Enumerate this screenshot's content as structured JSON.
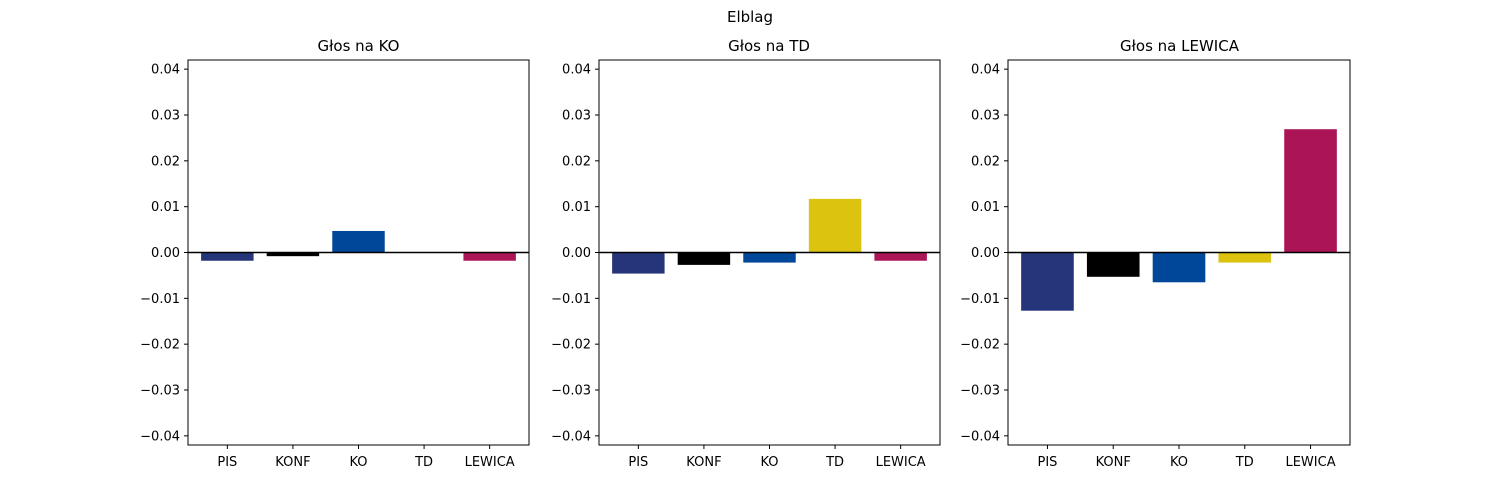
{
  "figure": {
    "suptitle": "Elblag"
  },
  "colors": {
    "PIS": "#263579",
    "KONF": "#000000",
    "KO": "#004699",
    "TD": "#dcc30f",
    "LEWICA": "#ab1558",
    "zero_line": "#000000",
    "axes_frame": "#000000"
  },
  "chart_data": [
    {
      "type": "bar",
      "title": "Głos na KO",
      "categories": [
        "PIS",
        "KONF",
        "KO",
        "TD",
        "LEWICA"
      ],
      "values": [
        -0.0018,
        -0.0008,
        0.0047,
        0.0,
        -0.0018
      ],
      "xlabel": "",
      "ylabel": "",
      "ylim": [
        -0.042,
        0.042
      ],
      "yticks": [
        -0.04,
        -0.03,
        -0.02,
        -0.01,
        0.0,
        0.01,
        0.02,
        0.03,
        0.04
      ],
      "ytick_labels": [
        "−0.04",
        "−0.03",
        "−0.02",
        "−0.01",
        "0.00",
        "0.01",
        "0.02",
        "0.03",
        "0.04"
      ],
      "grid": false,
      "zero_line": true
    },
    {
      "type": "bar",
      "title": "Głos na TD",
      "categories": [
        "PIS",
        "KONF",
        "KO",
        "TD",
        "LEWICA"
      ],
      "values": [
        -0.0046,
        -0.0027,
        -0.0022,
        0.0117,
        -0.0018
      ],
      "xlabel": "",
      "ylabel": "",
      "ylim": [
        -0.042,
        0.042
      ],
      "yticks": [
        -0.04,
        -0.03,
        -0.02,
        -0.01,
        0.0,
        0.01,
        0.02,
        0.03,
        0.04
      ],
      "ytick_labels": [
        "−0.04",
        "−0.03",
        "−0.02",
        "−0.01",
        "0.00",
        "0.01",
        "0.02",
        "0.03",
        "0.04"
      ],
      "grid": false,
      "zero_line": true
    },
    {
      "type": "bar",
      "title": "Głos na LEWICA",
      "categories": [
        "PIS",
        "KONF",
        "KO",
        "TD",
        "LEWICA"
      ],
      "values": [
        -0.0127,
        -0.0053,
        -0.0065,
        -0.0022,
        0.0269
      ],
      "xlabel": "",
      "ylabel": "",
      "ylim": [
        -0.042,
        0.042
      ],
      "yticks": [
        -0.04,
        -0.03,
        -0.02,
        -0.01,
        0.0,
        0.01,
        0.02,
        0.03,
        0.04
      ],
      "ytick_labels": [
        "−0.04",
        "−0.03",
        "−0.02",
        "−0.01",
        "0.00",
        "0.01",
        "0.02",
        "0.03",
        "0.04"
      ],
      "grid": false,
      "zero_line": true
    }
  ]
}
